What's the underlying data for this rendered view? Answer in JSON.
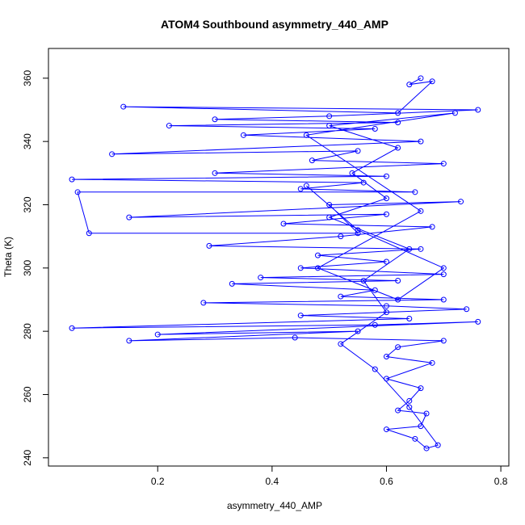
{
  "chart_data": {
    "type": "line",
    "markers": "circle-open",
    "color": "#0000ff",
    "title": "ATOM4 Southbound asymmetry_440_AMP",
    "x_label": "asymmetry_440_AMP",
    "y_label": "Theta (K)",
    "x": [
      0.66,
      0.64,
      0.68,
      0.62,
      0.14,
      0.76,
      0.5,
      0.3,
      0.62,
      0.22,
      0.58,
      0.35,
      0.66,
      0.12,
      0.55,
      0.47,
      0.7,
      0.3,
      0.6,
      0.05,
      0.56,
      0.45,
      0.65,
      0.06,
      0.08,
      0.55,
      0.5,
      0.73,
      0.15,
      0.6,
      0.42,
      0.68,
      0.52,
      0.29,
      0.66,
      0.48,
      0.6,
      0.45,
      0.7,
      0.38,
      0.62,
      0.33,
      0.58,
      0.52,
      0.7,
      0.28,
      0.6,
      0.74,
      0.45,
      0.64,
      0.05,
      0.58,
      0.76,
      0.2,
      0.55,
      0.15,
      0.44,
      0.7,
      0.62,
      0.6,
      0.68,
      0.6,
      0.66,
      0.64,
      0.62,
      0.67,
      0.66,
      0.6,
      0.65,
      0.67,
      0.69,
      0.64,
      0.58,
      0.52,
      0.6,
      0.56,
      0.64,
      0.5,
      0.6,
      0.54,
      0.62,
      0.5,
      0.72,
      0.46,
      0.66,
      0.48,
      0.62,
      0.7,
      0.55,
      0.46
    ],
    "values": [
      360,
      358,
      359,
      349,
      351,
      350,
      348,
      347,
      346,
      345,
      344,
      342,
      340,
      336,
      337,
      334,
      333,
      330,
      329,
      328,
      327,
      325,
      324,
      324,
      311,
      311,
      320,
      321,
      316,
      317,
      314,
      313,
      310,
      307,
      306,
      304,
      302,
      300,
      298,
      297,
      296,
      295,
      293,
      291,
      290,
      289,
      288,
      287,
      285,
      284,
      281,
      282,
      283,
      279,
      280,
      277,
      278,
      277,
      275,
      272,
      270,
      265,
      262,
      258,
      255,
      254,
      250,
      249,
      246,
      243,
      244,
      256,
      268,
      276,
      286,
      296,
      306,
      316,
      322,
      330,
      338,
      345,
      349,
      342,
      318,
      300,
      290,
      300,
      312,
      326
    ],
    "xlim": [
      0.009,
      0.814
    ],
    "ylim": [
      237.4,
      369.4
    ],
    "xticks": [
      0.2,
      0.4,
      0.6,
      0.8
    ],
    "yticks": [
      240,
      260,
      280,
      300,
      320,
      340,
      360
    ]
  }
}
